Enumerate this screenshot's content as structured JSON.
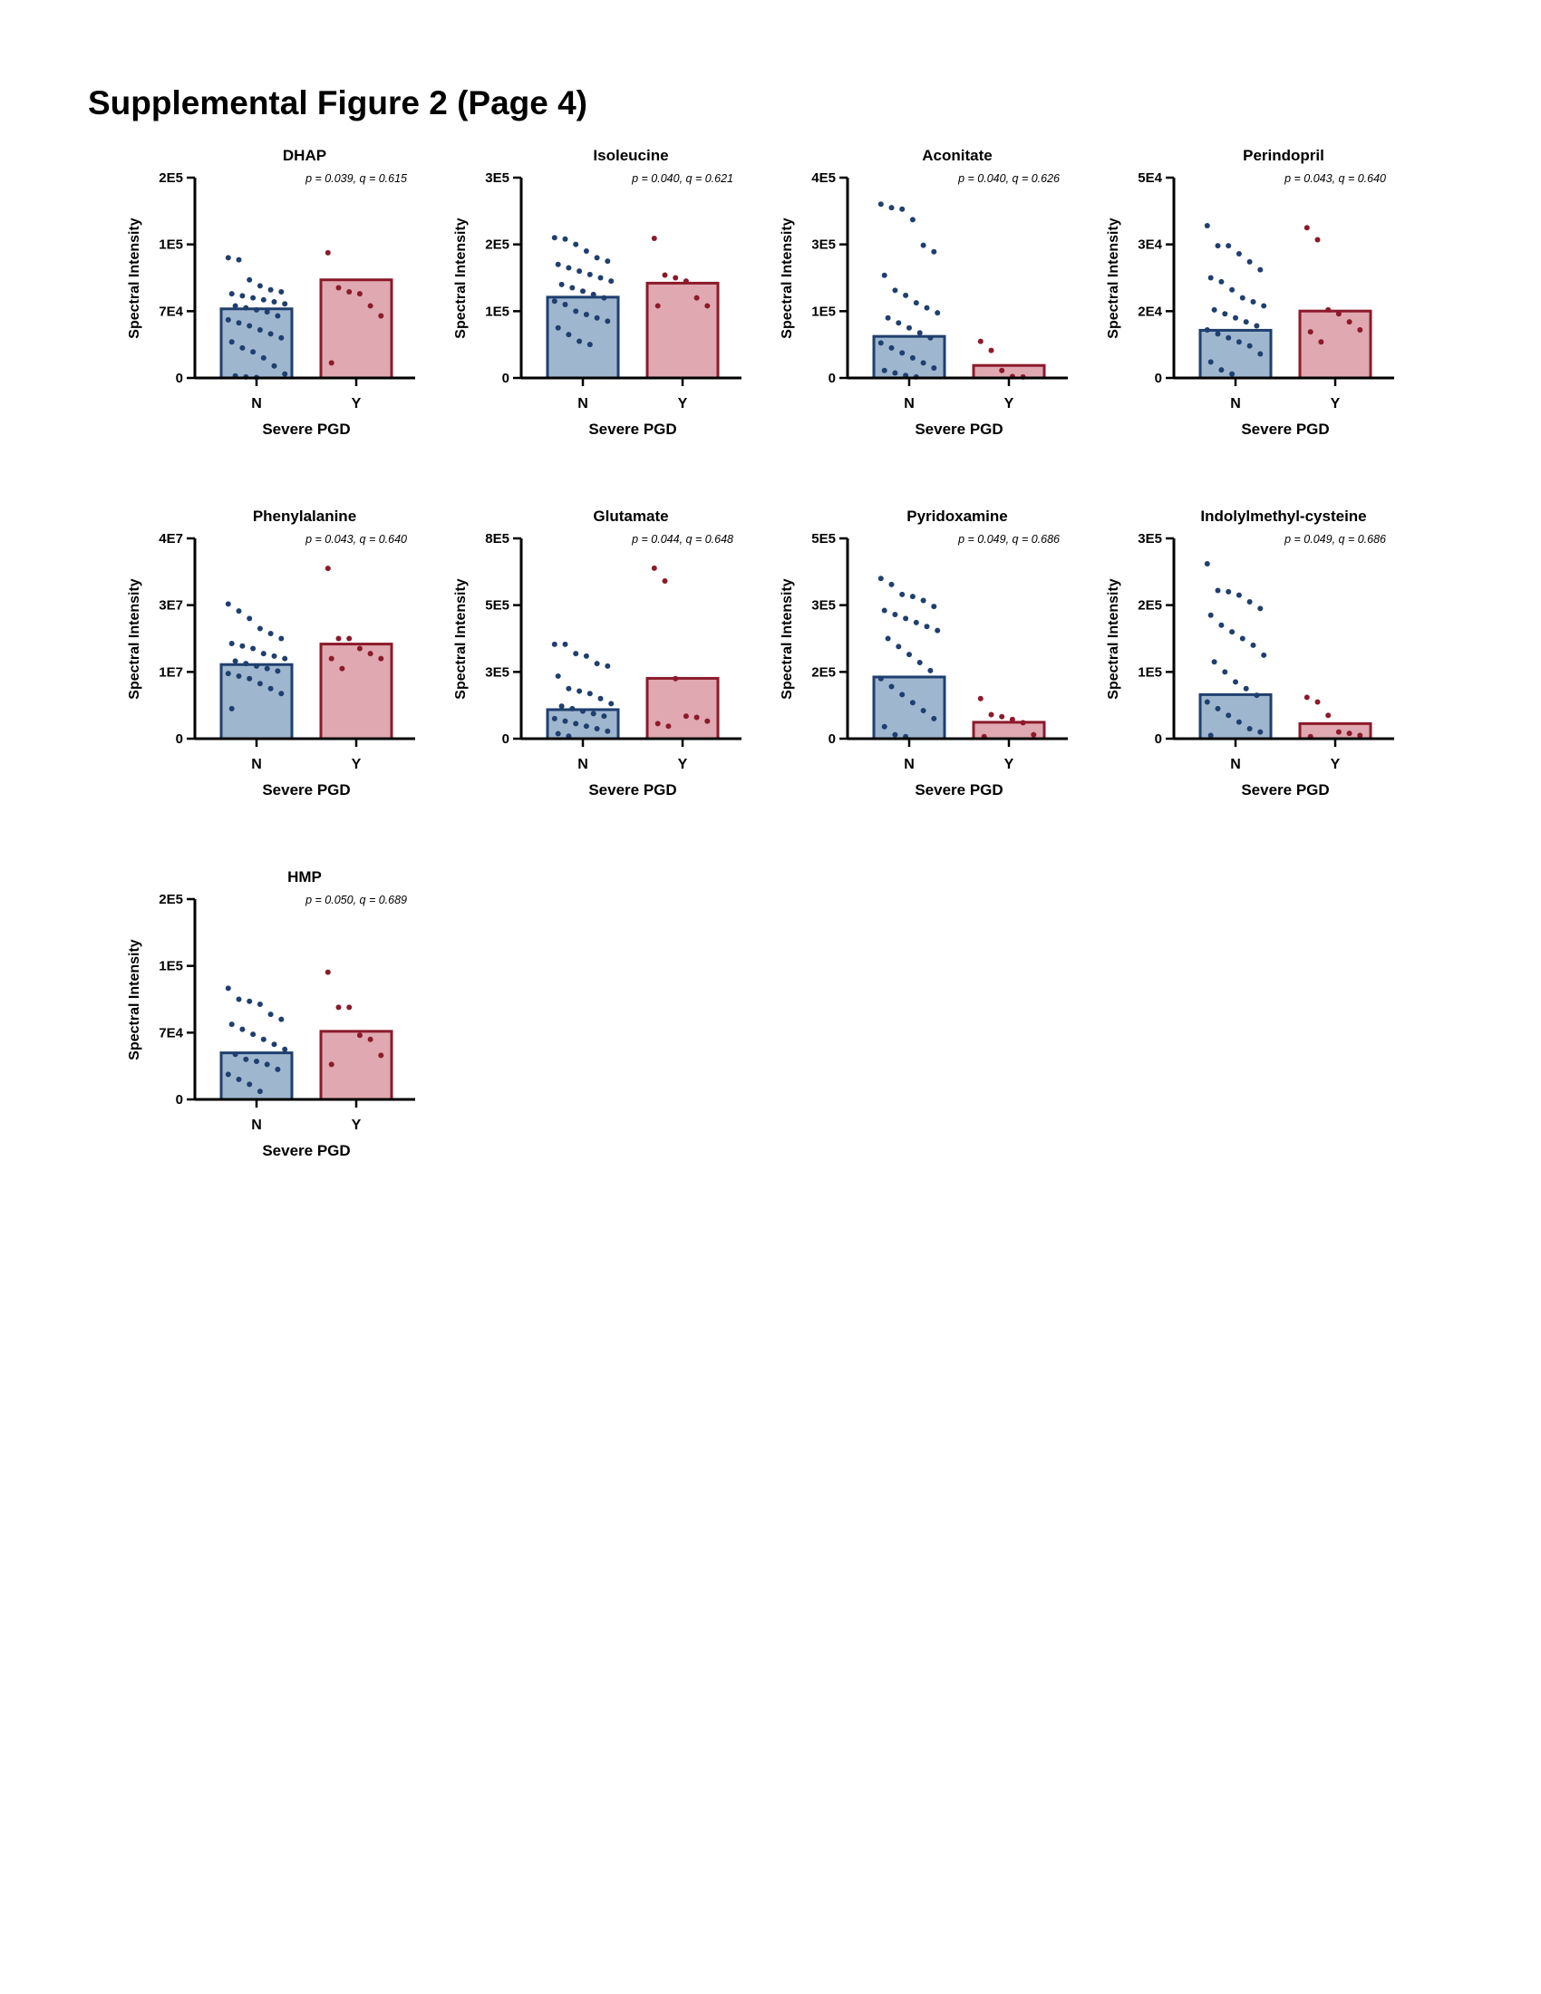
{
  "title": "Supplemental Figure 2 (Page 4)",
  "chart_data": [
    {
      "type": "bar",
      "title": "DHAP",
      "annotation": "p = 0.039, q = 0.615",
      "y_label": "Spectral Intensity",
      "x_label": "Severe PGD",
      "categories": [
        "N",
        "Y"
      ],
      "values": [
        69000,
        98000
      ],
      "fill_colors": [
        "#9fb6cf",
        "#e0a8b0"
      ],
      "colors": [
        "#1f3f6e",
        "#8b1a2b"
      ],
      "points": [
        [
          120000,
          118000,
          98000,
          92000,
          88000,
          86000,
          84000,
          82000,
          80000,
          78000,
          76000,
          74000,
          72000,
          70000,
          68000,
          66000,
          62000,
          58000,
          55000,
          52000,
          48000,
          44000,
          40000,
          36000,
          30000,
          26000,
          20000,
          12000,
          4000,
          2000,
          1000,
          500
        ],
        [
          125000,
          90000,
          86000,
          84000,
          72000,
          62000,
          15000
        ]
      ],
      "ylim": [
        0,
        200000
      ],
      "yticks": [
        0,
        {
          "value": 66667,
          "label": "7E4"
        },
        {
          "value": 133333,
          "label": "1E5"
        },
        {
          "value": 200000,
          "label": "2E5"
        }
      ]
    },
    {
      "type": "bar",
      "title": "Isoleucine",
      "annotation": "p = 0.040, q = 0.621",
      "y_label": "Spectral Intensity",
      "x_label": "Severe PGD",
      "categories": [
        "N",
        "Y"
      ],
      "values": [
        121000,
        142000
      ],
      "fill_colors": [
        "#9fb6cf",
        "#e0a8b0"
      ],
      "colors": [
        "#1f3f6e",
        "#8b1a2b"
      ],
      "points": [
        [
          210000,
          208000,
          200000,
          190000,
          180000,
          175000,
          170000,
          165000,
          160000,
          155000,
          150000,
          145000,
          140000,
          135000,
          130000,
          125000,
          120000,
          115000,
          110000,
          100000,
          95000,
          90000,
          85000,
          75000,
          65000,
          55000,
          50000
        ],
        [
          209000,
          154000,
          150000,
          145000,
          120000,
          108000,
          108000
        ]
      ],
      "ylim": [
        0,
        300000
      ],
      "yticks": [
        0,
        {
          "value": 100000,
          "label": "1E5"
        },
        {
          "value": 200000,
          "label": "2E5"
        },
        {
          "value": 300000,
          "label": "3E5"
        }
      ]
    },
    {
      "type": "bar",
      "title": "Aconitate",
      "annotation": "p = 0.040, q = 0.626",
      "y_label": "Spectral Intensity",
      "x_label": "Severe PGD",
      "categories": [
        "N",
        "Y"
      ],
      "values": [
        83000,
        25000
      ],
      "fill_colors": [
        "#9fb6cf",
        "#e0a8b0"
      ],
      "colors": [
        "#1f3f6e",
        "#8b1a2b"
      ],
      "points": [
        [
          347000,
          340000,
          337000,
          316000,
          265000,
          252000,
          205000,
          175000,
          165000,
          150000,
          140000,
          130000,
          120000,
          110000,
          100000,
          90000,
          80000,
          70000,
          60000,
          50000,
          40000,
          30000,
          20000,
          15000,
          10000,
          5000,
          2000
        ],
        [
          73000,
          55000,
          15000,
          3000,
          2000
        ]
      ],
      "ylim": [
        0,
        400000
      ],
      "yticks": [
        0,
        {
          "value": 133333,
          "label": "1E5"
        },
        {
          "value": 266667,
          "label": "3E5"
        },
        {
          "value": 400000,
          "label": "4E5"
        }
      ]
    },
    {
      "type": "bar",
      "title": "Perindopril",
      "annotation": "p = 0.043, q = 0.640",
      "y_label": "Spectral Intensity",
      "x_label": "Severe PGD",
      "categories": [
        "N",
        "Y"
      ],
      "values": [
        11900,
        16700
      ],
      "fill_colors": [
        "#9fb6cf",
        "#e0a8b0"
      ],
      "colors": [
        "#1f3f6e",
        "#8b1a2b"
      ],
      "points": [
        [
          38000,
          33000,
          33000,
          31000,
          29000,
          27000,
          25000,
          24000,
          22000,
          20000,
          19000,
          18000,
          17000,
          16000,
          15000,
          14000,
          13000,
          12000,
          11000,
          10000,
          9000,
          8000,
          6000,
          4000,
          2000,
          1000
        ],
        [
          37500,
          34500,
          17000,
          16000,
          14000,
          12000,
          11500,
          9000
        ]
      ],
      "ylim": [
        0,
        50000
      ],
      "yticks": [
        0,
        {
          "value": 16667,
          "label": "2E4"
        },
        {
          "value": 33333,
          "label": "3E4"
        },
        {
          "value": 50000,
          "label": "5E4"
        }
      ]
    },
    {
      "type": "bar",
      "title": "Phenylalanine",
      "annotation": "p = 0.043, q = 0.640",
      "y_label": "Spectral Intensity",
      "x_label": "Severe PGD",
      "categories": [
        "N",
        "Y"
      ],
      "values": [
        14800000,
        18900000
      ],
      "fill_colors": [
        "#9fb6cf",
        "#e0a8b0"
      ],
      "colors": [
        "#1f3f6e",
        "#8b1a2b"
      ],
      "points": [
        [
          26900000,
          25500000,
          24000000,
          22000000,
          21000000,
          20000000,
          19000000,
          18500000,
          18000000,
          17000000,
          16500000,
          16000000,
          15500000,
          15000000,
          14500000,
          14000000,
          13500000,
          13000000,
          12500000,
          12000000,
          11000000,
          10000000,
          9000000,
          6000000
        ],
        [
          34000000,
          20000000,
          20000000,
          18000000,
          17000000,
          16000000,
          16000000,
          14000000
        ]
      ],
      "ylim": [
        0,
        40000000
      ],
      "yticks": [
        0,
        {
          "value": 13333333,
          "label": "1E7"
        },
        {
          "value": 26666667,
          "label": "3E7"
        },
        {
          "value": 40000000,
          "label": "4E7"
        }
      ]
    },
    {
      "type": "bar",
      "title": "Glutamate",
      "annotation": "p = 0.044, q = 0.648",
      "y_label": "Spectral Intensity",
      "x_label": "Severe PGD",
      "categories": [
        "N",
        "Y"
      ],
      "values": [
        116000,
        241000
      ],
      "fill_colors": [
        "#9fb6cf",
        "#e0a8b0"
      ],
      "colors": [
        "#1f3f6e",
        "#8b1a2b"
      ],
      "points": [
        [
          377000,
          377000,
          340000,
          330000,
          300000,
          290000,
          250000,
          200000,
          190000,
          180000,
          160000,
          140000,
          130000,
          120000,
          110000,
          100000,
          90000,
          80000,
          70000,
          60000,
          50000,
          40000,
          30000,
          20000,
          10000
        ],
        [
          681000,
          630000,
          240000,
          90000,
          85000,
          70000,
          60000,
          50000
        ]
      ],
      "ylim": [
        0,
        800000
      ],
      "yticks": [
        0,
        {
          "value": 266667,
          "label": "3E5"
        },
        {
          "value": 533333,
          "label": "5E5"
        },
        {
          "value": 800000,
          "label": "8E5"
        }
      ]
    },
    {
      "type": "bar",
      "title": "Pyridoxamine",
      "annotation": "p = 0.049, q = 0.686",
      "y_label": "Spectral Intensity",
      "x_label": "Severe PGD",
      "categories": [
        "N",
        "Y"
      ],
      "values": [
        154000,
        41000
      ],
      "fill_colors": [
        "#9fb6cf",
        "#e0a8b0"
      ],
      "colors": [
        "#1f3f6e",
        "#8b1a2b"
      ],
      "points": [
        [
          400000,
          385000,
          360000,
          355000,
          345000,
          330000,
          320000,
          310000,
          300000,
          290000,
          280000,
          270000,
          250000,
          230000,
          210000,
          190000,
          170000,
          150000,
          130000,
          110000,
          90000,
          70000,
          50000,
          30000,
          10000,
          5000
        ],
        [
          100000,
          60000,
          55000,
          48000,
          40000,
          10000,
          5000
        ]
      ],
      "ylim": [
        0,
        500000
      ],
      "yticks": [
        0,
        {
          "value": 166667,
          "label": "2E5"
        },
        {
          "value": 333333,
          "label": "3E5"
        },
        {
          "value": 500000,
          "label": "5E5"
        }
      ]
    },
    {
      "type": "bar",
      "title": "Indolylmethyl-cysteine",
      "annotation": "p = 0.049, q = 0.686",
      "y_label": "Spectral Intensity",
      "x_label": "Severe PGD",
      "categories": [
        "N",
        "Y"
      ],
      "values": [
        66000,
        22600
      ],
      "fill_colors": [
        "#9fb6cf",
        "#e0a8b0"
      ],
      "colors": [
        "#1f3f6e",
        "#8b1a2b"
      ],
      "points": [
        [
          262000,
          222000,
          220000,
          215000,
          205000,
          195000,
          185000,
          170000,
          160000,
          150000,
          140000,
          125000,
          115000,
          100000,
          85000,
          75000,
          65000,
          55000,
          45000,
          35000,
          25000,
          15000,
          10000,
          5000
        ],
        [
          62000,
          55000,
          35000,
          10000,
          8000,
          5000,
          3000
        ]
      ],
      "ylim": [
        0,
        300000
      ],
      "yticks": [
        0,
        {
          "value": 100000,
          "label": "1E5"
        },
        {
          "value": 200000,
          "label": "2E5"
        },
        {
          "value": 300000,
          "label": "3E5"
        }
      ]
    },
    {
      "type": "bar",
      "title": "HMP",
      "annotation": "p = 0.050, q = 0.689",
      "y_label": "Spectral Intensity",
      "x_label": "Severe PGD",
      "categories": [
        "N",
        "Y"
      ],
      "values": [
        46500,
        68000
      ],
      "fill_colors": [
        "#9fb6cf",
        "#e0a8b0"
      ],
      "colors": [
        "#1f3f6e",
        "#8b1a2b"
      ],
      "points": [
        [
          111000,
          100000,
          98000,
          95000,
          85000,
          80000,
          75000,
          70000,
          65000,
          60000,
          55000,
          50000,
          45000,
          40000,
          38000,
          35000,
          30000,
          25000,
          20000,
          15000,
          8000
        ],
        [
          127000,
          92000,
          92000,
          64000,
          60000,
          44000,
          35000
        ]
      ],
      "ylim": [
        0,
        200000
      ],
      "yticks": [
        0,
        {
          "value": 66667,
          "label": "7E4"
        },
        {
          "value": 133333,
          "label": "1E5"
        },
        {
          "value": 200000,
          "label": "2E5"
        }
      ]
    }
  ]
}
